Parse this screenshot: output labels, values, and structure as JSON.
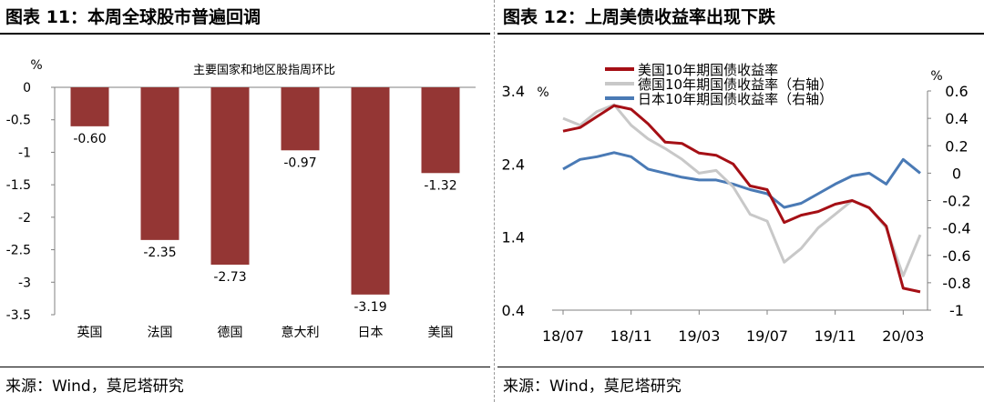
{
  "left": {
    "title": "图表 11：本周全球股市普遍回调",
    "source": "来源：Wind，莫尼塔研究",
    "chart_data": {
      "type": "bar",
      "title": "主要国家和地区股指周环比",
      "ylabel": "%",
      "categories": [
        "英国",
        "法国",
        "德国",
        "意大利",
        "日本",
        "美国"
      ],
      "values": [
        -0.6,
        -2.35,
        -2.73,
        -0.97,
        -3.19,
        -1.32
      ],
      "value_labels": [
        "-0.60",
        "-2.35",
        "-2.73",
        "-0.97",
        "-3.19",
        "-1.32"
      ],
      "ylim": [
        -3.5,
        0
      ],
      "yticks": [
        0,
        -0.5,
        -1,
        -1.5,
        -2,
        -2.5,
        -3,
        -3.5
      ],
      "ytick_labels": [
        "0",
        "-0.5",
        "-1",
        "-1.5",
        "-2",
        "-2.5",
        "-3",
        "-3.5"
      ],
      "bar_color": "#943634",
      "grid": false
    }
  },
  "right": {
    "title": "图表 12：上周美债收益率出现下跌",
    "source": "来源：Wind，莫尼塔研究",
    "chart_data": {
      "type": "line",
      "left_axis_unit": "%",
      "right_axis_unit": "%",
      "x_ticks": [
        "18/07",
        "18/11",
        "19/03",
        "19/07",
        "19/11",
        "20/03"
      ],
      "left_yticks": [
        3.4,
        2.4,
        1.4,
        0.4
      ],
      "left_ytick_labels": [
        "3.4",
        "2.4",
        "1.4",
        "0.4"
      ],
      "left_ylim": [
        0.4,
        3.4
      ],
      "right_yticks": [
        0.6,
        0.4,
        0.2,
        0,
        -0.2,
        -0.4,
        -0.6,
        -0.8,
        -1
      ],
      "right_ytick_labels": [
        "0.6",
        "0.4",
        "0.2",
        "0",
        "-0.2",
        "-0.4",
        "-0.6",
        "-0.8",
        "-1"
      ],
      "right_ylim": [
        -1,
        0.6
      ],
      "legend_position": "top-left",
      "series": [
        {
          "name": "美国10年期国债收益率",
          "axis": "left",
          "color": "#a50f15",
          "points": [
            [
              "18/07",
              2.85
            ],
            [
              "18/08",
              2.9
            ],
            [
              "18/09",
              3.05
            ],
            [
              "18/10",
              3.2
            ],
            [
              "18/11",
              3.15
            ],
            [
              "18/12",
              2.95
            ],
            [
              "19/01",
              2.7
            ],
            [
              "19/02",
              2.68
            ],
            [
              "19/03",
              2.55
            ],
            [
              "19/04",
              2.52
            ],
            [
              "19/05",
              2.4
            ],
            [
              "19/06",
              2.1
            ],
            [
              "19/07",
              2.05
            ],
            [
              "19/08",
              1.6
            ],
            [
              "19/09",
              1.7
            ],
            [
              "19/10",
              1.75
            ],
            [
              "19/11",
              1.85
            ],
            [
              "19/12",
              1.9
            ],
            [
              "20/01",
              1.8
            ],
            [
              "20/02",
              1.55
            ],
            [
              "20/03",
              0.7
            ],
            [
              "20/04",
              0.65
            ]
          ]
        },
        {
          "name": "德国10年期国债收益率（右轴）",
          "axis": "right",
          "color": "#c8c8c8",
          "points": [
            [
              "18/07",
              0.4
            ],
            [
              "18/08",
              0.35
            ],
            [
              "18/09",
              0.45
            ],
            [
              "18/10",
              0.5
            ],
            [
              "18/11",
              0.35
            ],
            [
              "18/12",
              0.25
            ],
            [
              "19/01",
              0.18
            ],
            [
              "19/02",
              0.1
            ],
            [
              "19/03",
              0.0
            ],
            [
              "19/04",
              0.02
            ],
            [
              "19/05",
              -0.1
            ],
            [
              "19/06",
              -0.3
            ],
            [
              "19/07",
              -0.35
            ],
            [
              "19/08",
              -0.65
            ],
            [
              "19/09",
              -0.55
            ],
            [
              "19/10",
              -0.4
            ],
            [
              "19/11",
              -0.3
            ],
            [
              "19/12",
              -0.2
            ],
            [
              "20/01",
              -0.25
            ],
            [
              "20/02",
              -0.4
            ],
            [
              "20/03",
              -0.75
            ],
            [
              "20/04",
              -0.45
            ]
          ]
        },
        {
          "name": "日本10年期国债收益率（右轴）",
          "axis": "right",
          "color": "#4a7ab5",
          "points": [
            [
              "18/07",
              0.03
            ],
            [
              "18/08",
              0.1
            ],
            [
              "18/09",
              0.12
            ],
            [
              "18/10",
              0.15
            ],
            [
              "18/11",
              0.12
            ],
            [
              "18/12",
              0.03
            ],
            [
              "19/01",
              0.0
            ],
            [
              "19/02",
              -0.03
            ],
            [
              "19/03",
              -0.05
            ],
            [
              "19/04",
              -0.05
            ],
            [
              "19/05",
              -0.08
            ],
            [
              "19/06",
              -0.12
            ],
            [
              "19/07",
              -0.15
            ],
            [
              "19/08",
              -0.25
            ],
            [
              "19/09",
              -0.22
            ],
            [
              "19/10",
              -0.15
            ],
            [
              "19/11",
              -0.08
            ],
            [
              "19/12",
              -0.02
            ],
            [
              "20/01",
              0.0
            ],
            [
              "20/02",
              -0.08
            ],
            [
              "20/03",
              0.1
            ],
            [
              "20/04",
              0.0
            ]
          ]
        }
      ]
    }
  }
}
